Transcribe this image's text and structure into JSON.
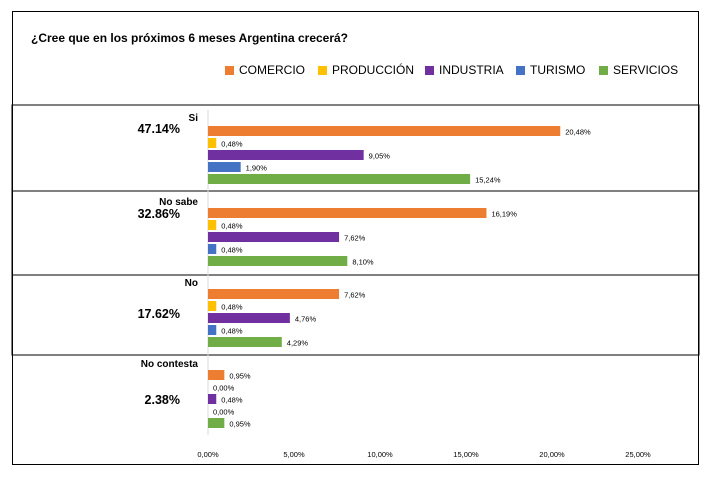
{
  "chart_data": {
    "type": "bar",
    "orientation": "horizontal",
    "title": "¿Cree que en los próximos 6 meses Argentina crecerá?",
    "legend_position": "top-right",
    "grid": false,
    "xlim": [
      0,
      25
    ],
    "x_ticks": [
      "0,00%",
      "5,00%",
      "10,00%",
      "15,00%",
      "20,00%",
      "25,00%"
    ],
    "series": [
      {
        "name": "COMERCIO",
        "color": "#ed7d31"
      },
      {
        "name": "PRODUCCIÓN",
        "color": "#ffc000"
      },
      {
        "name": "INDUSTRIA",
        "color": "#7030a0"
      },
      {
        "name": "TURISMO",
        "color": "#4472c4"
      },
      {
        "name": "SERVICIOS",
        "color": "#70ad47"
      }
    ],
    "groups": [
      {
        "label": "Si",
        "total": "47.14%",
        "values": [
          20.48,
          0.48,
          9.05,
          1.9,
          15.24
        ],
        "value_labels": [
          "20,48%",
          "0,48%",
          "9,05%",
          "1,90%",
          "15,24%"
        ]
      },
      {
        "label": "No sabe",
        "total": "32.86%",
        "values": [
          16.19,
          0.48,
          7.62,
          0.48,
          8.1
        ],
        "value_labels": [
          "16,19%",
          "0,48%",
          "7,62%",
          "0,48%",
          "8,10%"
        ]
      },
      {
        "label": "No",
        "total": "17.62%",
        "values": [
          7.62,
          0.48,
          4.76,
          0.48,
          4.29
        ],
        "value_labels": [
          "7,62%",
          "0,48%",
          "4,76%",
          "0,48%",
          "4,29%"
        ]
      },
      {
        "label": "No contesta",
        "total": "2.38%",
        "values": [
          0.95,
          0.0,
          0.48,
          0.0,
          0.95
        ],
        "value_labels": [
          "0,95%",
          "0,00%",
          "0,48%",
          "0,00%",
          "0,95%"
        ]
      }
    ]
  }
}
